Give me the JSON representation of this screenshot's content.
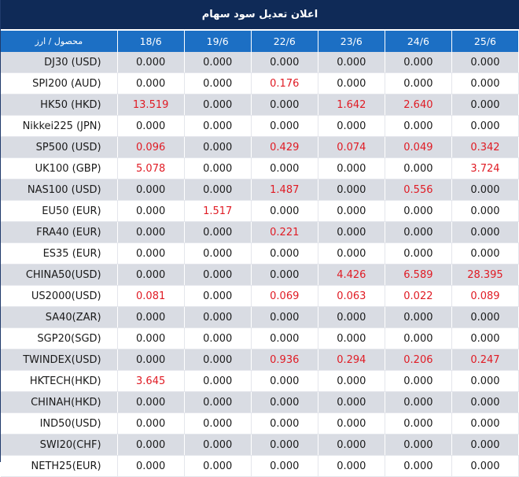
{
  "title": "اعلان تعدیل سود سهام",
  "header": {
    "instrument_col": "محصول / ارز",
    "dates": [
      "18/6",
      "19/6",
      "22/6",
      "23/6",
      "24/6",
      "25/6"
    ]
  },
  "colors": {
    "title_bg": "#0f2a57",
    "header_bg": "#1c6fc4",
    "odd_row_bg": "#d9dce3",
    "even_row_bg": "#ffffff",
    "nonzero_value": "#e01b24",
    "zero_value": "#1a1a1a"
  },
  "rows": [
    {
      "instrument": "DJ30 (USD)",
      "values": [
        "0.000",
        "0.000",
        "0.000",
        "0.000",
        "0.000",
        "0.000"
      ]
    },
    {
      "instrument": "SPI200 (AUD)",
      "values": [
        "0.000",
        "0.000",
        "0.176",
        "0.000",
        "0.000",
        "0.000"
      ]
    },
    {
      "instrument": "HK50 (HKD)",
      "values": [
        "13.519",
        "0.000",
        "0.000",
        "1.642",
        "2.640",
        "0.000"
      ]
    },
    {
      "instrument": "Nikkei225 (JPN)",
      "values": [
        "0.000",
        "0.000",
        "0.000",
        "0.000",
        "0.000",
        "0.000"
      ]
    },
    {
      "instrument": "SP500 (USD)",
      "values": [
        "0.096",
        "0.000",
        "0.429",
        "0.074",
        "0.049",
        "0.342"
      ]
    },
    {
      "instrument": "UK100 (GBP)",
      "values": [
        "5.078",
        "0.000",
        "0.000",
        "0.000",
        "0.000",
        "3.724"
      ]
    },
    {
      "instrument": "NAS100 (USD)",
      "values": [
        "0.000",
        "0.000",
        "1.487",
        "0.000",
        "0.556",
        "0.000"
      ]
    },
    {
      "instrument": "EU50 (EUR)",
      "values": [
        "0.000",
        "1.517",
        "0.000",
        "0.000",
        "0.000",
        "0.000"
      ]
    },
    {
      "instrument": "FRA40 (EUR)",
      "values": [
        "0.000",
        "0.000",
        "0.221",
        "0.000",
        "0.000",
        "0.000"
      ]
    },
    {
      "instrument": "ES35 (EUR)",
      "values": [
        "0.000",
        "0.000",
        "0.000",
        "0.000",
        "0.000",
        "0.000"
      ]
    },
    {
      "instrument": "CHINA50(USD)",
      "values": [
        "0.000",
        "0.000",
        "0.000",
        "4.426",
        "6.589",
        "28.395"
      ]
    },
    {
      "instrument": "US2000(USD)",
      "values": [
        "0.081",
        "0.000",
        "0.069",
        "0.063",
        "0.022",
        "0.089"
      ]
    },
    {
      "instrument": "SA40(ZAR)",
      "values": [
        "0.000",
        "0.000",
        "0.000",
        "0.000",
        "0.000",
        "0.000"
      ]
    },
    {
      "instrument": "SGP20(SGD)",
      "values": [
        "0.000",
        "0.000",
        "0.000",
        "0.000",
        "0.000",
        "0.000"
      ]
    },
    {
      "instrument": "TWINDEX(USD)",
      "values": [
        "0.000",
        "0.000",
        "0.936",
        "0.294",
        "0.206",
        "0.247"
      ]
    },
    {
      "instrument": "HKTECH(HKD)",
      "values": [
        "3.645",
        "0.000",
        "0.000",
        "0.000",
        "0.000",
        "0.000"
      ]
    },
    {
      "instrument": "CHINAH(HKD)",
      "values": [
        "0.000",
        "0.000",
        "0.000",
        "0.000",
        "0.000",
        "0.000"
      ]
    },
    {
      "instrument": "IND50(USD)",
      "values": [
        "0.000",
        "0.000",
        "0.000",
        "0.000",
        "0.000",
        "0.000"
      ]
    },
    {
      "instrument": "SWI20(CHF)",
      "values": [
        "0.000",
        "0.000",
        "0.000",
        "0.000",
        "0.000",
        "0.000"
      ]
    },
    {
      "instrument": "NETH25(EUR)",
      "values": [
        "0.000",
        "0.000",
        "0.000",
        "0.000",
        "0.000",
        "0.000"
      ]
    }
  ]
}
